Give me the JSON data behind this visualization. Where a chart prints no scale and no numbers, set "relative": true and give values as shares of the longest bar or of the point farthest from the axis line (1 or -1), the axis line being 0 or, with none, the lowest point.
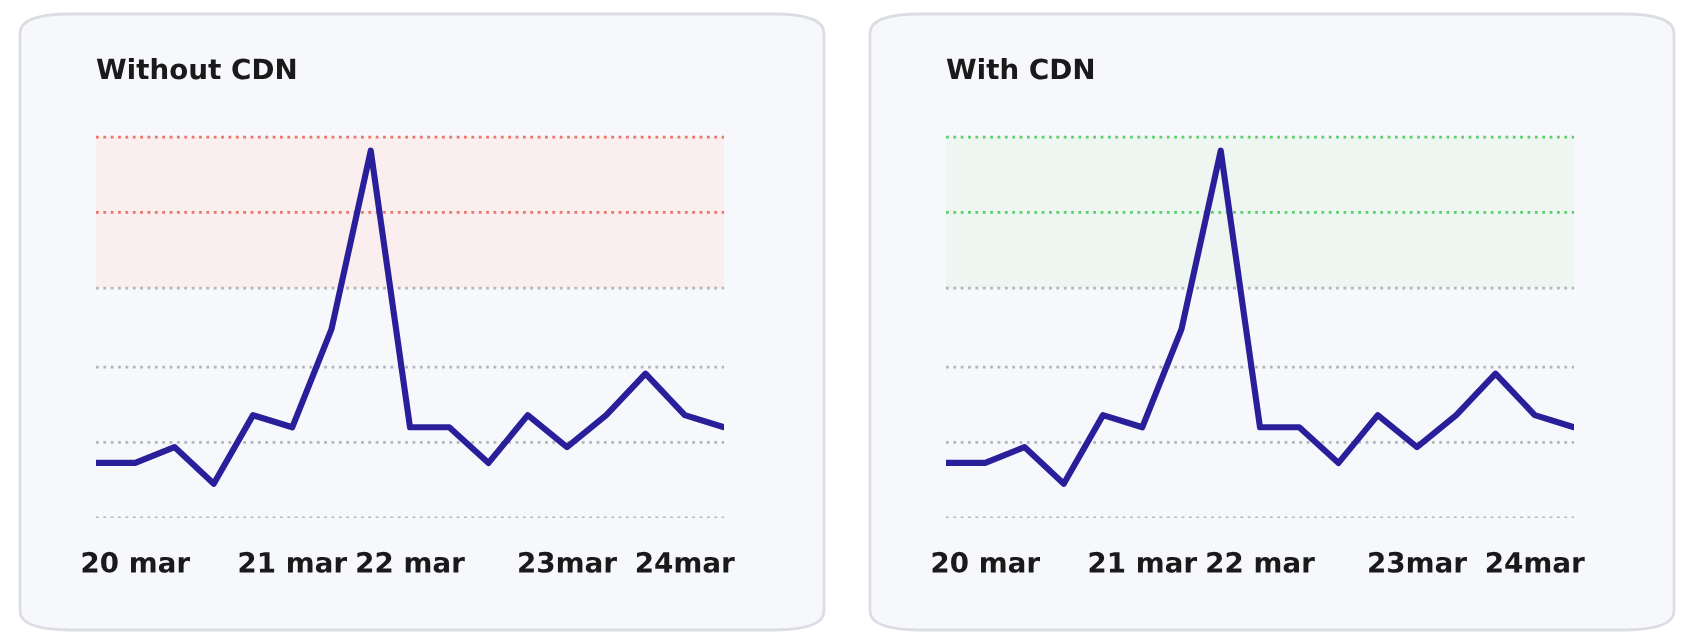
{
  "chart_data": [
    {
      "type": "line",
      "title": "Without CDN",
      "relative": true,
      "tick_labels": "x",
      "line_style": "solid",
      "categories": [
        null,
        "20 mar",
        null,
        null,
        null,
        "21 mar",
        null,
        null,
        "22 mar",
        null,
        null,
        null,
        "23mar",
        null,
        null,
        "24mar",
        null
      ],
      "series": [
        {
          "color": "#2a1f9a",
          "values": [
            0.15,
            0.15,
            0.193,
            0.093,
            0.28,
            0.247,
            0.514,
            1,
            0.247,
            0.247,
            0.15,
            0.28,
            0.193,
            0.28,
            0.393,
            0.28,
            0.247
          ]
        }
      ],
      "bands": [
        {
          "axis": "y",
          "from": 0.626,
          "to": 1.037,
          "color": "#fbeeee"
        }
      ],
      "ref_lines": [
        {
          "axis": "y",
          "value": 1.037,
          "color": "#e8766a",
          "line_style": "dotted"
        },
        {
          "axis": "y",
          "value": 0.832,
          "color": "#e8766a",
          "line_style": "dotted"
        },
        {
          "axis": "y",
          "value": 0.626,
          "color": "#b4b4bc",
          "line_style": "dotted"
        },
        {
          "axis": "y",
          "value": 0.411,
          "color": "#b4b4bc",
          "line_style": "dotted"
        },
        {
          "axis": "y",
          "value": 0.206,
          "color": "#b4b4bc",
          "line_style": "dotted"
        },
        {
          "axis": "y",
          "value": 0,
          "color": "#b4b4bc",
          "line_style": "dotted"
        }
      ]
    },
    {
      "type": "line",
      "title": "With CDN",
      "relative": true,
      "tick_labels": "x",
      "line_style": "solid",
      "categories": [
        null,
        "20 mar",
        null,
        null,
        null,
        "21 mar",
        null,
        null,
        "22 mar",
        null,
        null,
        null,
        "23mar",
        null,
        null,
        "24mar",
        null
      ],
      "series": [
        {
          "color": "#2a1f9a",
          "values": [
            0.15,
            0.15,
            0.193,
            0.093,
            0.28,
            0.247,
            0.514,
            1,
            0.247,
            0.247,
            0.15,
            0.28,
            0.193,
            0.28,
            0.393,
            0.28,
            0.247
          ]
        }
      ],
      "bands": [
        {
          "axis": "y",
          "from": 0.626,
          "to": 1.037,
          "color": "#edf6f0"
        }
      ],
      "ref_lines": [
        {
          "axis": "y",
          "value": 1.037,
          "color": "#5ccf6a",
          "line_style": "dotted"
        },
        {
          "axis": "y",
          "value": 0.832,
          "color": "#5ccf6a",
          "line_style": "dotted"
        },
        {
          "axis": "y",
          "value": 0.626,
          "color": "#b4b4bc",
          "line_style": "dotted"
        },
        {
          "axis": "y",
          "value": 0.411,
          "color": "#b4b4bc",
          "line_style": "dotted"
        },
        {
          "axis": "y",
          "value": 0.206,
          "color": "#b4b4bc",
          "line_style": "dotted"
        },
        {
          "axis": "y",
          "value": 0,
          "color": "#b4b4bc",
          "line_style": "dotted"
        }
      ]
    }
  ]
}
